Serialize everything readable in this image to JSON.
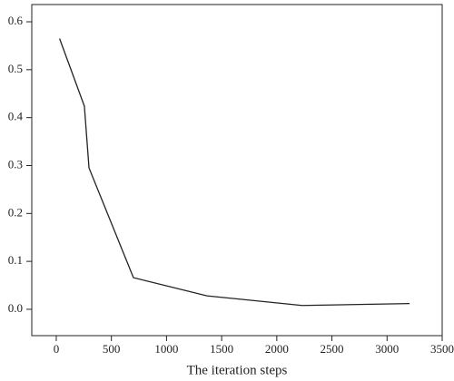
{
  "chart_data": {
    "type": "line",
    "x_label": "The iteration steps",
    "x": [
      30,
      255,
      297,
      700,
      1367,
      2230,
      3204
    ],
    "values": [
      0.565,
      0.424,
      0.295,
      0.066,
      0.028,
      0.008,
      0.012
    ],
    "color": "#222222",
    "xlim": [
      -222,
      3500
    ],
    "ylim": [
      -0.055,
      0.636
    ],
    "xticks": [
      0,
      500,
      1000,
      1500,
      2000,
      2500,
      3000,
      3500
    ],
    "yticks": [
      {
        "value": 0,
        "label": "0.0"
      },
      0.1,
      0.2,
      0.3,
      0.4,
      0.5,
      0.6
    ]
  }
}
